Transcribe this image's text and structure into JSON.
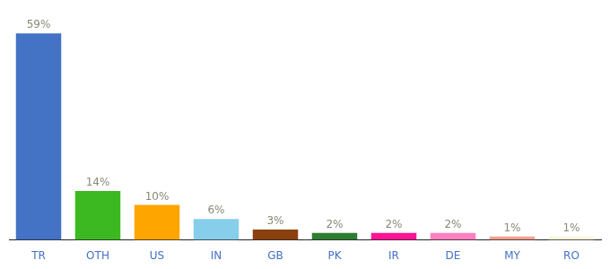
{
  "chart_data": {
    "type": "bar",
    "categories": [
      "TR",
      "OTH",
      "US",
      "IN",
      "GB",
      "PK",
      "IR",
      "DE",
      "MY",
      "RO"
    ],
    "values": [
      59,
      14,
      10,
      6,
      3,
      2,
      2,
      2,
      1,
      1
    ],
    "value_labels": [
      "59%",
      "14%",
      "10%",
      "6%",
      "3%",
      "2%",
      "2%",
      "2%",
      "1%",
      "1%"
    ],
    "colors": [
      "#4472C4",
      "#3CB820",
      "#FFA500",
      "#87CEEB",
      "#8B4010",
      "#2E7D32",
      "#FF1493",
      "#FF80C0",
      "#F4A090",
      "#F5F5DC"
    ],
    "ylim": [
      0,
      66
    ],
    "data_labels": true,
    "tick_labels": "x",
    "grid": false
  }
}
